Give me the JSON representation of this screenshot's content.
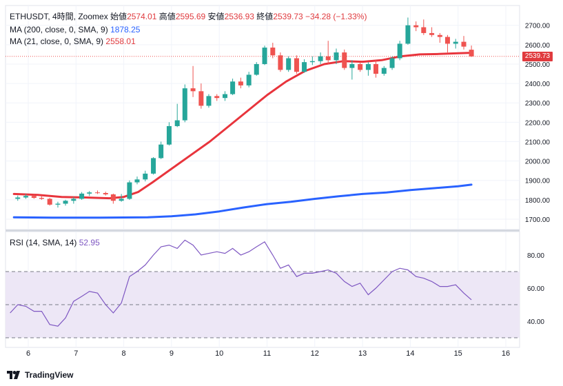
{
  "header": {
    "symbol": "ETHUSDT, 4時間, Zoomex",
    "open_label": "始値",
    "open": "2574.01",
    "high_label": "高値",
    "high": "2595.69",
    "low_label": "安値",
    "low": "2536.93",
    "close_label": "終値",
    "close": "2539.73",
    "change": "−34.28 (−1.33%)",
    "ma200_label": "MA (200, close, 0, SMA, 9)",
    "ma200_value": "1878.25",
    "ma21_label": "MA (21, close, 0, SMA, 9)",
    "ma21_value": "2558.01",
    "rsi_label": "RSI (14, SMA, 14)",
    "rsi_value": "52.95"
  },
  "last_price_label": "2539.73",
  "logo_text": "TradingView",
  "colors": {
    "up": "#26a69a",
    "down": "#ef5350",
    "ma21": "#e8343c",
    "ma200": "#2962ff",
    "rsi": "#7e57c2",
    "rsi_band": "#ede7f6"
  },
  "chart_data": [
    {
      "type": "candlestick",
      "title": "ETHUSDT, 4時間, Zoomex",
      "x_axis": {
        "ticks": [
          "6",
          "7",
          "8",
          "9",
          "10",
          "11",
          "12",
          "13",
          "14",
          "15",
          "16"
        ]
      },
      "y_axis": {
        "range": [
          1650,
          2750
        ],
        "ticks": [
          "1700.00",
          "1800.00",
          "1900.00",
          "2000.00",
          "2100.00",
          "2200.00",
          "2300.00",
          "2400.00",
          "2500.00",
          "2600.00",
          "2700.00"
        ]
      },
      "grid": true,
      "candles": [
        {
          "x": 5.78,
          "o": 1805,
          "h": 1822,
          "l": 1795,
          "c": 1812
        },
        {
          "x": 5.95,
          "o": 1812,
          "h": 1830,
          "l": 1805,
          "c": 1820
        },
        {
          "x": 6.12,
          "o": 1820,
          "h": 1828,
          "l": 1805,
          "c": 1810
        },
        {
          "x": 6.28,
          "o": 1810,
          "h": 1818,
          "l": 1800,
          "c": 1805
        },
        {
          "x": 6.45,
          "o": 1805,
          "h": 1810,
          "l": 1770,
          "c": 1775
        },
        {
          "x": 6.62,
          "o": 1775,
          "h": 1790,
          "l": 1760,
          "c": 1780
        },
        {
          "x": 6.78,
          "o": 1780,
          "h": 1800,
          "l": 1770,
          "c": 1795
        },
        {
          "x": 6.95,
          "o": 1795,
          "h": 1815,
          "l": 1780,
          "c": 1805
        },
        {
          "x": 7.12,
          "o": 1805,
          "h": 1840,
          "l": 1800,
          "c": 1832
        },
        {
          "x": 7.28,
          "o": 1832,
          "h": 1845,
          "l": 1820,
          "c": 1838
        },
        {
          "x": 7.45,
          "o": 1838,
          "h": 1848,
          "l": 1830,
          "c": 1835
        },
        {
          "x": 7.62,
          "o": 1835,
          "h": 1842,
          "l": 1822,
          "c": 1828
        },
        {
          "x": 7.78,
          "o": 1828,
          "h": 1832,
          "l": 1780,
          "c": 1795
        },
        {
          "x": 7.95,
          "o": 1795,
          "h": 1830,
          "l": 1790,
          "c": 1805
        },
        {
          "x": 8.12,
          "o": 1805,
          "h": 1900,
          "l": 1800,
          "c": 1890
        },
        {
          "x": 8.28,
          "o": 1890,
          "h": 1920,
          "l": 1880,
          "c": 1905
        },
        {
          "x": 8.45,
          "o": 1905,
          "h": 1950,
          "l": 1895,
          "c": 1935
        },
        {
          "x": 8.62,
          "o": 1935,
          "h": 2020,
          "l": 1930,
          "c": 2015
        },
        {
          "x": 8.78,
          "o": 2015,
          "h": 2100,
          "l": 2010,
          "c": 2085
        },
        {
          "x": 8.95,
          "o": 2085,
          "h": 2200,
          "l": 2080,
          "c": 2180
        },
        {
          "x": 9.12,
          "o": 2180,
          "h": 2295,
          "l": 2175,
          "c": 2210
        },
        {
          "x": 9.28,
          "o": 2210,
          "h": 2395,
          "l": 2200,
          "c": 2375
        },
        {
          "x": 9.45,
          "o": 2375,
          "h": 2490,
          "l": 2330,
          "c": 2360
        },
        {
          "x": 9.62,
          "o": 2360,
          "h": 2400,
          "l": 2270,
          "c": 2285
        },
        {
          "x": 9.78,
          "o": 2285,
          "h": 2345,
          "l": 2275,
          "c": 2335
        },
        {
          "x": 9.95,
          "o": 2335,
          "h": 2345,
          "l": 2310,
          "c": 2325
        },
        {
          "x": 10.12,
          "o": 2325,
          "h": 2360,
          "l": 2310,
          "c": 2345
        },
        {
          "x": 10.28,
          "o": 2345,
          "h": 2425,
          "l": 2340,
          "c": 2410
        },
        {
          "x": 10.45,
          "o": 2410,
          "h": 2430,
          "l": 2375,
          "c": 2390
        },
        {
          "x": 10.62,
          "o": 2390,
          "h": 2460,
          "l": 2380,
          "c": 2445
        },
        {
          "x": 10.78,
          "o": 2445,
          "h": 2510,
          "l": 2440,
          "c": 2500
        },
        {
          "x": 10.95,
          "o": 2500,
          "h": 2595,
          "l": 2495,
          "c": 2585
        },
        {
          "x": 11.12,
          "o": 2585,
          "h": 2610,
          "l": 2530,
          "c": 2545
        },
        {
          "x": 11.28,
          "o": 2545,
          "h": 2560,
          "l": 2460,
          "c": 2470
        },
        {
          "x": 11.45,
          "o": 2470,
          "h": 2540,
          "l": 2460,
          "c": 2530
        },
        {
          "x": 11.62,
          "o": 2530,
          "h": 2545,
          "l": 2450,
          "c": 2460
        },
        {
          "x": 11.78,
          "o": 2460,
          "h": 2525,
          "l": 2455,
          "c": 2510
        },
        {
          "x": 11.95,
          "o": 2510,
          "h": 2540,
          "l": 2495,
          "c": 2515
        },
        {
          "x": 12.12,
          "o": 2515,
          "h": 2560,
          "l": 2500,
          "c": 2540
        },
        {
          "x": 12.28,
          "o": 2540,
          "h": 2620,
          "l": 2500,
          "c": 2520
        },
        {
          "x": 12.45,
          "o": 2520,
          "h": 2580,
          "l": 2500,
          "c": 2560
        },
        {
          "x": 12.62,
          "o": 2560,
          "h": 2575,
          "l": 2470,
          "c": 2480
        },
        {
          "x": 12.78,
          "o": 2480,
          "h": 2520,
          "l": 2420,
          "c": 2500
        },
        {
          "x": 12.95,
          "o": 2500,
          "h": 2510,
          "l": 2460,
          "c": 2470
        },
        {
          "x": 13.12,
          "o": 2470,
          "h": 2510,
          "l": 2440,
          "c": 2500
        },
        {
          "x": 13.28,
          "o": 2500,
          "h": 2520,
          "l": 2430,
          "c": 2450
        },
        {
          "x": 13.45,
          "o": 2450,
          "h": 2490,
          "l": 2440,
          "c": 2480
        },
        {
          "x": 13.62,
          "o": 2480,
          "h": 2540,
          "l": 2470,
          "c": 2530
        },
        {
          "x": 13.78,
          "o": 2530,
          "h": 2620,
          "l": 2520,
          "c": 2605
        },
        {
          "x": 13.95,
          "o": 2605,
          "h": 2740,
          "l": 2600,
          "c": 2700
        },
        {
          "x": 14.12,
          "o": 2700,
          "h": 2720,
          "l": 2670,
          "c": 2690
        },
        {
          "x": 14.28,
          "o": 2690,
          "h": 2730,
          "l": 2650,
          "c": 2660
        },
        {
          "x": 14.45,
          "o": 2660,
          "h": 2690,
          "l": 2640,
          "c": 2650
        },
        {
          "x": 14.62,
          "o": 2650,
          "h": 2660,
          "l": 2610,
          "c": 2640
        },
        {
          "x": 14.78,
          "o": 2640,
          "h": 2650,
          "l": 2560,
          "c": 2605
        },
        {
          "x": 14.95,
          "o": 2605,
          "h": 2630,
          "l": 2580,
          "c": 2615
        },
        {
          "x": 15.12,
          "o": 2615,
          "h": 2645,
          "l": 2575,
          "c": 2590
        },
        {
          "x": 15.28,
          "o": 2574.01,
          "h": 2595.69,
          "l": 2536.93,
          "c": 2539.73
        }
      ],
      "series": [
        {
          "name": "MA (200, close, 0, SMA, 9)",
          "values": [
            [
              5.7,
              1710
            ],
            [
              6.5,
              1708
            ],
            [
              7.5,
              1708
            ],
            [
              8.5,
              1710
            ],
            [
              9.0,
              1715
            ],
            [
              9.5,
              1725
            ],
            [
              10.0,
              1740
            ],
            [
              10.5,
              1760
            ],
            [
              11.0,
              1778
            ],
            [
              11.5,
              1790
            ],
            [
              12.0,
              1805
            ],
            [
              12.5,
              1818
            ],
            [
              13.0,
              1830
            ],
            [
              13.5,
              1838
            ],
            [
              14.0,
              1850
            ],
            [
              14.5,
              1860
            ],
            [
              15.0,
              1870
            ],
            [
              15.28,
              1878.25
            ]
          ]
        },
        {
          "name": "MA (21, close, 0, SMA, 9)",
          "values": [
            [
              5.7,
              1830
            ],
            [
              6.2,
              1825
            ],
            [
              6.7,
              1815
            ],
            [
              7.2,
              1812
            ],
            [
              7.7,
              1808
            ],
            [
              8.0,
              1815
            ],
            [
              8.3,
              1840
            ],
            [
              8.6,
              1890
            ],
            [
              9.0,
              1960
            ],
            [
              9.4,
              2030
            ],
            [
              9.8,
              2100
            ],
            [
              10.2,
              2180
            ],
            [
              10.6,
              2260
            ],
            [
              11.0,
              2340
            ],
            [
              11.4,
              2410
            ],
            [
              11.8,
              2465
            ],
            [
              12.2,
              2500
            ],
            [
              12.6,
              2515
            ],
            [
              13.0,
              2512
            ],
            [
              13.4,
              2520
            ],
            [
              13.8,
              2540
            ],
            [
              14.2,
              2550
            ],
            [
              14.6,
              2552
            ],
            [
              15.0,
              2556
            ],
            [
              15.28,
              2558.01
            ]
          ]
        }
      ]
    },
    {
      "type": "line",
      "title": "RSI (14, SMA, 14)",
      "x_axis": {
        "ticks": [
          "6",
          "7",
          "8",
          "9",
          "10",
          "11",
          "12",
          "13",
          "14",
          "15",
          "16"
        ]
      },
      "y_axis": {
        "range": [
          25,
          95
        ],
        "ticks": [
          "40.00",
          "60.00",
          "80.00"
        ]
      },
      "band": [
        30,
        70
      ],
      "midline": 50,
      "series": [
        {
          "name": "RSI (14, SMA, 14)",
          "values": [
            [
              5.62,
              45
            ],
            [
              5.78,
              50
            ],
            [
              5.95,
              49
            ],
            [
              6.12,
              46
            ],
            [
              6.28,
              46
            ],
            [
              6.45,
              38
            ],
            [
              6.62,
              37
            ],
            [
              6.78,
              42
            ],
            [
              6.95,
              52
            ],
            [
              7.12,
              55
            ],
            [
              7.28,
              58
            ],
            [
              7.45,
              57
            ],
            [
              7.62,
              50
            ],
            [
              7.78,
              45
            ],
            [
              7.95,
              51
            ],
            [
              8.12,
              67
            ],
            [
              8.28,
              70
            ],
            [
              8.45,
              74
            ],
            [
              8.62,
              80
            ],
            [
              8.78,
              85
            ],
            [
              8.95,
              86
            ],
            [
              9.12,
              84
            ],
            [
              9.28,
              89
            ],
            [
              9.45,
              86
            ],
            [
              9.62,
              80
            ],
            [
              9.78,
              81
            ],
            [
              9.95,
              82
            ],
            [
              10.12,
              81
            ],
            [
              10.28,
              84
            ],
            [
              10.45,
              80
            ],
            [
              10.62,
              82
            ],
            [
              10.78,
              85
            ],
            [
              10.95,
              88
            ],
            [
              11.12,
              80
            ],
            [
              11.28,
              72
            ],
            [
              11.45,
              74
            ],
            [
              11.62,
              67
            ],
            [
              11.78,
              69
            ],
            [
              11.95,
              69
            ],
            [
              12.12,
              70
            ],
            [
              12.28,
              71
            ],
            [
              12.45,
              69
            ],
            [
              12.62,
              64
            ],
            [
              12.78,
              61
            ],
            [
              12.95,
              63
            ],
            [
              13.12,
              56
            ],
            [
              13.28,
              60
            ],
            [
              13.45,
              65
            ],
            [
              13.62,
              70
            ],
            [
              13.78,
              72
            ],
            [
              13.95,
              71
            ],
            [
              14.12,
              67
            ],
            [
              14.28,
              66
            ],
            [
              14.45,
              64
            ],
            [
              14.62,
              61
            ],
            [
              14.78,
              61
            ],
            [
              14.95,
              62
            ],
            [
              15.12,
              57
            ],
            [
              15.28,
              52.95
            ]
          ]
        }
      ]
    }
  ]
}
